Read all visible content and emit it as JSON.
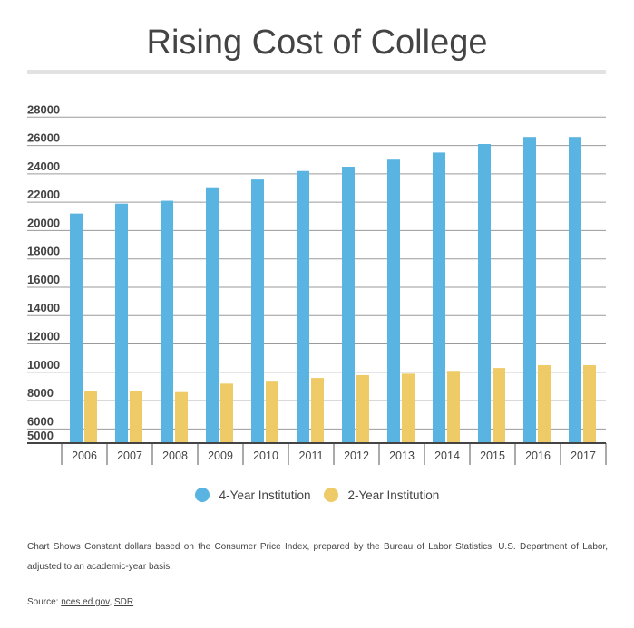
{
  "chart_data": {
    "type": "bar",
    "title": "Rising Cost of College",
    "xlabel": "",
    "ylabel": "",
    "categories": [
      "2006",
      "2007",
      "2008",
      "2009",
      "2010",
      "2011",
      "2012",
      "2013",
      "2014",
      "2015",
      "2016",
      "2017"
    ],
    "series": [
      {
        "name": "4-Year Institution",
        "color": "#5ab4e2",
        "values": [
          21200,
          21900,
          22100,
          23050,
          23600,
          24200,
          24500,
          25000,
          25500,
          26100,
          26600,
          26600
        ]
      },
      {
        "name": "2-Year Institution",
        "color": "#eecb66",
        "values": [
          8700,
          8700,
          8600,
          9200,
          9400,
          9600,
          9800,
          9900,
          10100,
          10300,
          10500,
          10500
        ]
      }
    ],
    "ylim": [
      5000,
      28000
    ],
    "yticks": [
      5000,
      6000,
      8000,
      10000,
      12000,
      14000,
      16000,
      18000,
      20000,
      22000,
      24000,
      26000,
      28000
    ],
    "grid": true,
    "legend_position": "bottom"
  },
  "note": "Chart Shows Constant dollars based on the Consumer Price Index, prepared by the Bureau of Labor Statistics, U.S. Department of Labor, adjusted to an academic-year basis.",
  "source": {
    "label": "Source:",
    "links": [
      "nces.ed.gov",
      "SDR"
    ],
    "sep": ", "
  }
}
